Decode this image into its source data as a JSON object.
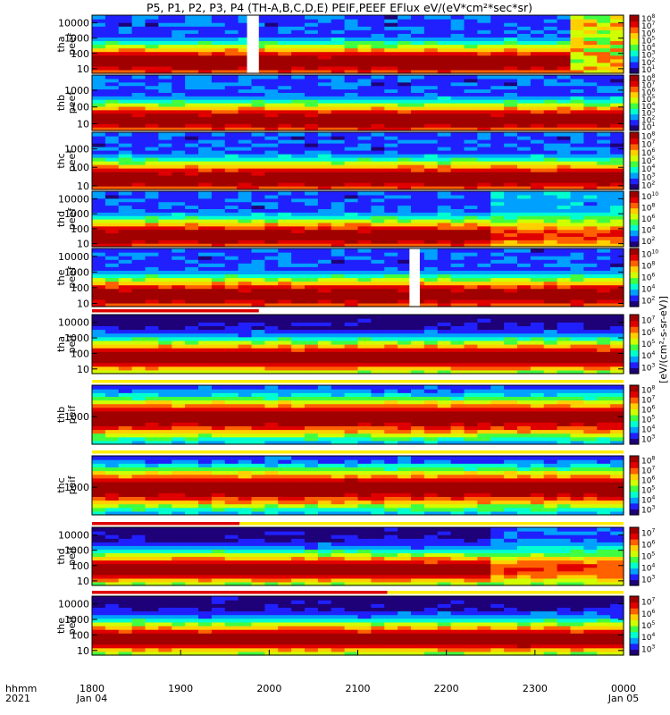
{
  "chart_data": {
    "type": "heatmap",
    "title": "P5, P1, P2, P3, P4 (TH-A,B,C,D,E) PEIF,PEEF EFlux eV/(eV*cm²*sec*sr)",
    "x_axis": {
      "row_labels": [
        "hhmm",
        "2021"
      ],
      "ticks": [
        {
          "value": 1800,
          "label": "1800",
          "sub": "Jan 04"
        },
        {
          "value": 1900,
          "label": "1900",
          "sub": ""
        },
        {
          "value": 2000,
          "label": "2000",
          "sub": ""
        },
        {
          "value": 2100,
          "label": "2100",
          "sub": ""
        },
        {
          "value": 2200,
          "label": "2200",
          "sub": ""
        },
        {
          "value": 2300,
          "label": "2300",
          "sub": ""
        },
        {
          "value": 2400,
          "label": "0000",
          "sub": "Jan 05"
        }
      ],
      "range_minutes": [
        0,
        360
      ]
    },
    "colorbar_label": "[eV/(cm²-s-sr-eV)]",
    "panels": [
      {
        "id": "tha-peef",
        "label_line1": "tha",
        "label_line2": "peef",
        "species": "electron",
        "y_ticks": [
          "10000",
          "1000",
          "100",
          "10"
        ],
        "y_ticks_exp": [
          4,
          3,
          2,
          1
        ],
        "y_range_log": [
          0.7,
          4.5
        ],
        "cbar_exponents": [
          1,
          2,
          3,
          4,
          5,
          6,
          7,
          8
        ],
        "data_gaps_minutes": [
          [
            105,
            113
          ]
        ],
        "overlay_lines": []
      },
      {
        "id": "thb-peef",
        "label_line1": "thb",
        "label_line2": "peef",
        "species": "electron",
        "y_ticks": [
          "1000",
          "100",
          "10"
        ],
        "y_ticks_exp": [
          3,
          2,
          1
        ],
        "y_range_log": [
          0.6,
          3.9
        ],
        "cbar_exponents": [
          1,
          2,
          3,
          4,
          5,
          6,
          7,
          8
        ],
        "data_gaps_minutes": [],
        "overlay_lines": []
      },
      {
        "id": "thc-peef",
        "label_line1": "thc",
        "label_line2": "peef",
        "species": "electron",
        "y_ticks": [
          "1000",
          "100",
          "10"
        ],
        "y_ticks_exp": [
          3,
          2,
          1
        ],
        "y_range_log": [
          0.8,
          3.9
        ],
        "cbar_exponents": [
          2,
          3,
          4,
          5,
          6,
          7,
          8
        ],
        "data_gaps_minutes": [],
        "overlay_lines": []
      },
      {
        "id": "thd-peef",
        "label_line1": "thd",
        "label_line2": "peef",
        "species": "electron",
        "y_ticks": [
          "10000",
          "1000",
          "100",
          "10"
        ],
        "y_ticks_exp": [
          4,
          3,
          2,
          1
        ],
        "y_range_log": [
          0.8,
          4.5
        ],
        "cbar_exponents": [
          2,
          4,
          6,
          8,
          10
        ],
        "data_gaps_minutes": [],
        "overlay_lines": [
          {
            "start_min": 98,
            "end_min": 113,
            "color": "#dd0000"
          }
        ]
      },
      {
        "id": "the-peef",
        "label_line1": "the",
        "label_line2": "peef",
        "species": "electron",
        "y_ticks": [
          "10000",
          "1000",
          "100",
          "10"
        ],
        "y_ticks_exp": [
          4,
          3,
          2,
          1
        ],
        "y_range_log": [
          0.8,
          4.5
        ],
        "cbar_exponents": [
          2,
          4,
          6,
          8,
          10
        ],
        "data_gaps_minutes": [
          [
            215,
            222
          ]
        ],
        "overlay_lines": []
      },
      {
        "id": "tha-peif",
        "label_line1": "tha",
        "label_line2": "peif",
        "species": "ion",
        "y_ticks": [
          "10000",
          "1000",
          "100",
          "10"
        ],
        "y_ticks_exp": [
          4,
          3,
          2,
          1
        ],
        "y_range_log": [
          0.7,
          4.5
        ],
        "cbar_exponents": [
          3,
          4,
          5,
          6,
          7
        ],
        "data_gaps_minutes": [],
        "overlay_lines": [
          {
            "start_min": 0,
            "end_min": 113,
            "color": "#dd0000"
          }
        ]
      },
      {
        "id": "thb-peif",
        "label_line1": "thb",
        "label_line2": "peif",
        "species": "ion",
        "y_ticks": [
          "1000"
        ],
        "y_ticks_exp": [
          3
        ],
        "y_range_log": [
          2.3,
          3.8
        ],
        "cbar_exponents": [
          3,
          4,
          5,
          6,
          7,
          8
        ],
        "data_gaps_minutes": [],
        "overlay_lines": [
          {
            "start_min": 0,
            "end_min": 360,
            "color": "#ffee00"
          }
        ]
      },
      {
        "id": "thc-peif",
        "label_line1": "thc",
        "label_line2": "peif",
        "species": "ion",
        "y_ticks": [
          "1000"
        ],
        "y_ticks_exp": [
          3
        ],
        "y_range_log": [
          2.3,
          3.8
        ],
        "cbar_exponents": [
          3,
          4,
          5,
          6,
          7,
          8
        ],
        "data_gaps_minutes": [],
        "overlay_lines": [
          {
            "start_min": 0,
            "end_min": 360,
            "color": "#ffee00"
          }
        ]
      },
      {
        "id": "thd-peif",
        "label_line1": "thd",
        "label_line2": "peif",
        "species": "ion",
        "y_ticks": [
          "10000",
          "1000",
          "100",
          "10"
        ],
        "y_ticks_exp": [
          4,
          3,
          2,
          1
        ],
        "y_range_log": [
          0.7,
          4.5
        ],
        "cbar_exponents": [
          3,
          4,
          5,
          6,
          7
        ],
        "data_gaps_minutes": [],
        "overlay_lines": [
          {
            "start_min": 0,
            "end_min": 100,
            "color": "#dd0000"
          },
          {
            "start_min": 100,
            "end_min": 360,
            "color": "#ffee00"
          }
        ]
      },
      {
        "id": "the-peif",
        "label_line1": "the",
        "label_line2": "peif",
        "species": "ion",
        "y_ticks": [
          "10000",
          "1000",
          "100",
          "10"
        ],
        "y_ticks_exp": [
          4,
          3,
          2,
          1
        ],
        "y_range_log": [
          0.7,
          4.5
        ],
        "cbar_exponents": [
          3,
          4,
          5,
          6,
          7
        ],
        "data_gaps_minutes": [],
        "overlay_lines": [
          {
            "start_min": 0,
            "end_min": 200,
            "color": "#dd0000"
          },
          {
            "start_min": 200,
            "end_min": 360,
            "color": "#ffee00"
          }
        ]
      }
    ],
    "colormap": [
      "#1e0078",
      "#2020ff",
      "#00a0ff",
      "#00ffd0",
      "#40ff40",
      "#d0ff00",
      "#ffd000",
      "#ff6000",
      "#e00000",
      "#a00000"
    ]
  }
}
